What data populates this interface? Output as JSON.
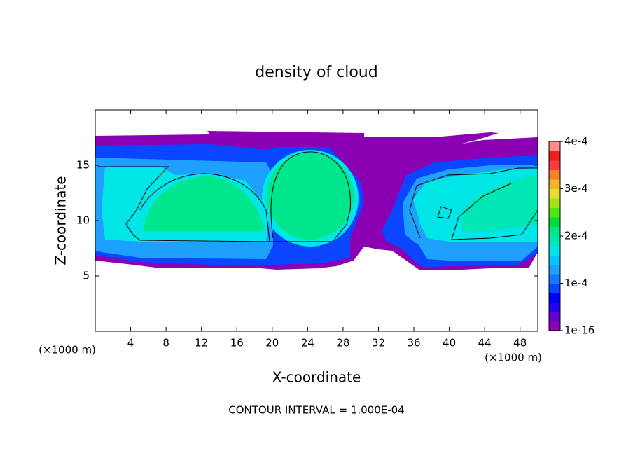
{
  "chart_data": {
    "type": "contour",
    "title": "density of cloud",
    "x_label": "X-coordinate",
    "y_label": "Z-coordinate",
    "x_unit_label": "(×1000 m)",
    "y_unit_label": "(×1000 m)",
    "footnote": "CONTOUR INTERVAL = 1.000E-04",
    "xlim": [
      0,
      50
    ],
    "xticks": [
      4,
      8,
      12,
      16,
      20,
      24,
      28,
      32,
      36,
      40,
      44,
      48
    ],
    "ylim": [
      0,
      20
    ],
    "yticks": [
      5,
      10,
      15
    ],
    "colorbar": {
      "lim": [
        0,
        0.0004
      ],
      "ticks": [
        {
          "value": 1e-16,
          "label": "1e-16"
        },
        {
          "value": 0.0001,
          "label": "1e-4"
        },
        {
          "value": 0.0002,
          "label": "2e-4"
        },
        {
          "value": 0.0003,
          "label": "3e-4"
        },
        {
          "value": 0.0004,
          "label": "4e-4"
        }
      ],
      "colors": [
        "#8c00b4",
        "#6400d2",
        "#2800f0",
        "#0000ff",
        "#0a46ff",
        "#1478ff",
        "#1ea0ff",
        "#00c8ff",
        "#00e6e6",
        "#00e6b4",
        "#00e68c",
        "#00dc3c",
        "#50e614",
        "#a0e614",
        "#e6dc32",
        "#f0b428",
        "#f08228",
        "#fa3c3c",
        "#f01e1e",
        "#ff8c8c"
      ]
    }
  }
}
